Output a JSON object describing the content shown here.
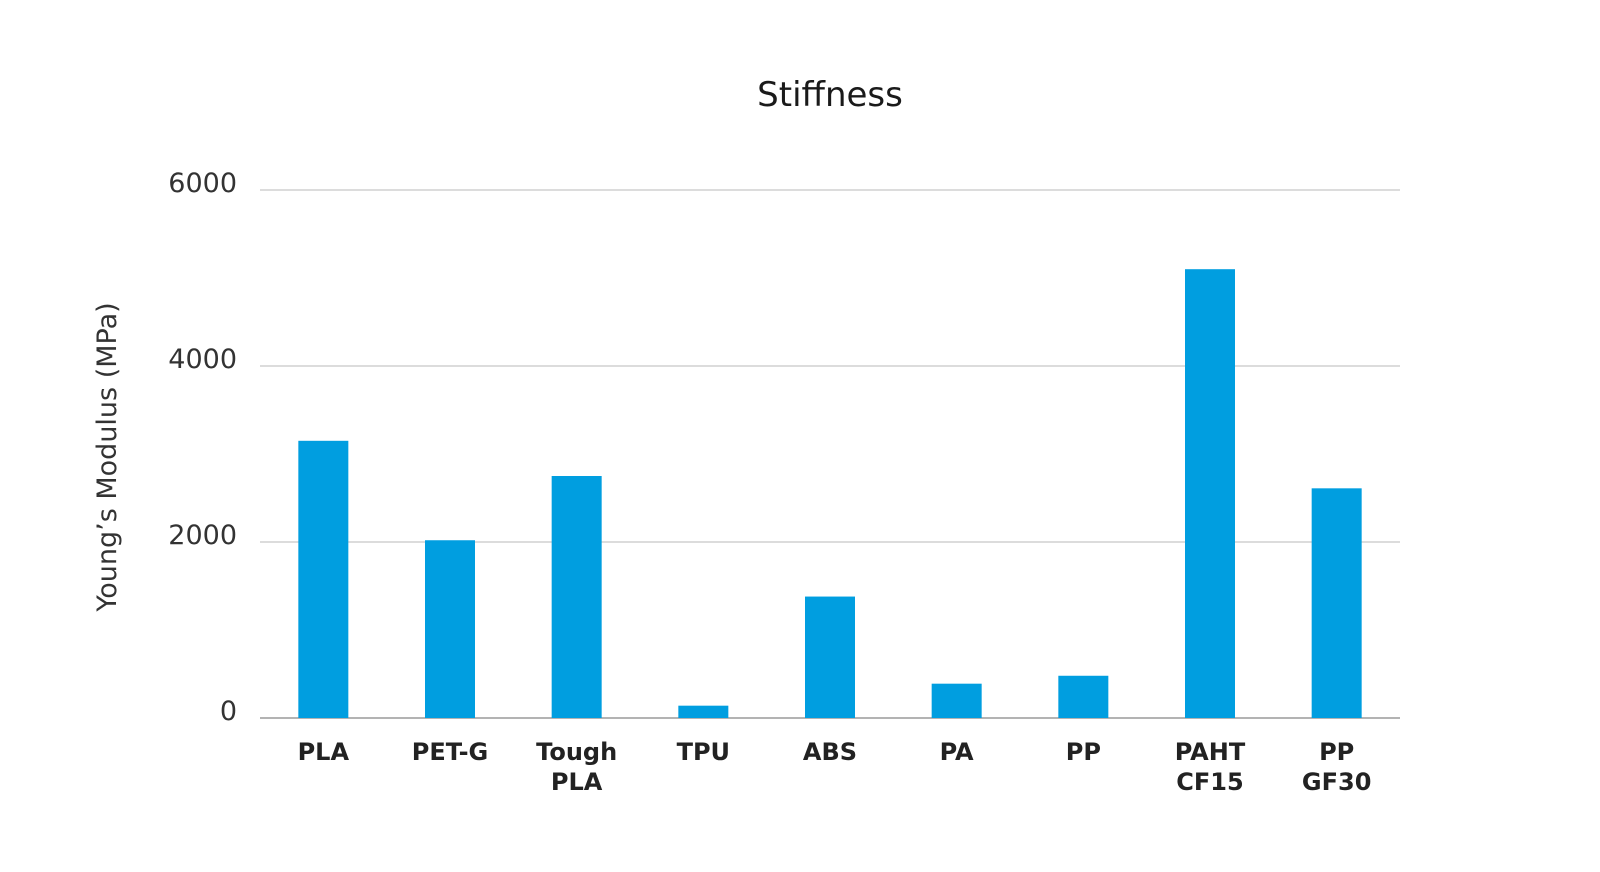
{
  "chart_data": {
    "type": "bar",
    "title": "Stiffness",
    "xlabel": "",
    "ylabel": "Young’s Modulus (MPa)",
    "ylim": [
      0,
      6000
    ],
    "yticks": [
      0,
      2000,
      4000,
      6000
    ],
    "grid": true,
    "bar_color": "#009ee0",
    "categories": [
      [
        "PLA"
      ],
      [
        "PET-G"
      ],
      [
        "Tough",
        "PLA"
      ],
      [
        "TPU"
      ],
      [
        "ABS"
      ],
      [
        "PA"
      ],
      [
        "PP"
      ],
      [
        "PAHT",
        "CF15"
      ],
      [
        "PP",
        "GF30"
      ]
    ],
    "values": [
      3150,
      2020,
      2750,
      140,
      1380,
      390,
      480,
      5100,
      2610
    ]
  }
}
